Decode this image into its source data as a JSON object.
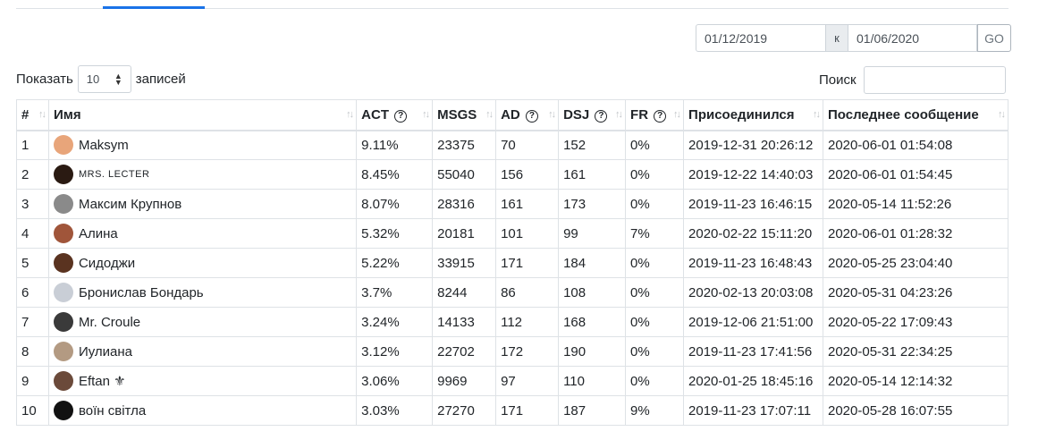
{
  "date_filter": {
    "start": "01/12/2019",
    "separator": "к",
    "end": "01/06/2020",
    "go_label": "GO"
  },
  "length": {
    "label_before": "Показать",
    "value": "10",
    "label_after": "записей"
  },
  "search": {
    "label": "Поиск",
    "value": ""
  },
  "columns": [
    {
      "label": "#",
      "help": false
    },
    {
      "label": "Имя",
      "help": false
    },
    {
      "label": "ACT",
      "help": true
    },
    {
      "label": "MSGS",
      "help": false
    },
    {
      "label": "AD",
      "help": true
    },
    {
      "label": "DSJ",
      "help": true
    },
    {
      "label": "FR",
      "help": true
    },
    {
      "label": "Присоединился",
      "help": false
    },
    {
      "label": "Последнее сообщение",
      "help": false
    }
  ],
  "rows": [
    {
      "n": "1",
      "name": "Maksym",
      "act": "9.11%",
      "msgs": "23375",
      "ad": "70",
      "dsj": "152",
      "fr": "0%",
      "joined": "2019-12-31 20:26:12",
      "last": "2020-06-01 01:54:08",
      "avatar_color": "#e8a57a"
    },
    {
      "n": "2",
      "name": "MRS. LECTER",
      "act": "8.45%",
      "msgs": "55040",
      "ad": "156",
      "dsj": "161",
      "fr": "0%",
      "joined": "2019-12-22 14:40:03",
      "last": "2020-06-01 01:54:45",
      "avatar_color": "#2a1a12"
    },
    {
      "n": "3",
      "name": "Максим Крупнов",
      "act": "8.07%",
      "msgs": "28316",
      "ad": "161",
      "dsj": "173",
      "fr": "0%",
      "joined": "2019-11-23 16:46:15",
      "last": "2020-05-14 11:52:26",
      "avatar_color": "#8a8a8a"
    },
    {
      "n": "4",
      "name": "Алина",
      "act": "5.32%",
      "msgs": "20181",
      "ad": "101",
      "dsj": "99",
      "fr": "7%",
      "joined": "2020-02-22 15:11:20",
      "last": "2020-06-01 01:28:32",
      "avatar_color": "#a0553a"
    },
    {
      "n": "5",
      "name": "Сидоджи",
      "act": "5.22%",
      "msgs": "33915",
      "ad": "171",
      "dsj": "184",
      "fr": "0%",
      "joined": "2019-11-23 16:48:43",
      "last": "2020-05-25 23:04:40",
      "avatar_color": "#5a3320"
    },
    {
      "n": "6",
      "name": "Бронислав Бондарь",
      "act": "3.7%",
      "msgs": "8244",
      "ad": "86",
      "dsj": "108",
      "fr": "0%",
      "joined": "2020-02-13 20:03:08",
      "last": "2020-05-31 04:23:26",
      "avatar_color": "#c9ced6"
    },
    {
      "n": "7",
      "name": "Mr. Croule",
      "act": "3.24%",
      "msgs": "14133",
      "ad": "112",
      "dsj": "168",
      "fr": "0%",
      "joined": "2019-12-06 21:51:00",
      "last": "2020-05-22 17:09:43",
      "avatar_color": "#3a3a3a"
    },
    {
      "n": "8",
      "name": "Иулиана",
      "act": "3.12%",
      "msgs": "22702",
      "ad": "172",
      "dsj": "190",
      "fr": "0%",
      "joined": "2019-11-23 17:41:56",
      "last": "2020-05-31 22:34:25",
      "avatar_color": "#b39a82"
    },
    {
      "n": "9",
      "name": "Eftan ⚜",
      "act": "3.06%",
      "msgs": "9969",
      "ad": "97",
      "dsj": "110",
      "fr": "0%",
      "joined": "2020-01-25 18:45:16",
      "last": "2020-05-14 12:14:32",
      "avatar_color": "#6b4a3a"
    },
    {
      "n": "10",
      "name": "воїн світла",
      "act": "3.03%",
      "msgs": "27270",
      "ad": "171",
      "dsj": "187",
      "fr": "9%",
      "joined": "2019-11-23 17:07:11",
      "last": "2020-05-28 16:07:55",
      "avatar_color": "#111111"
    }
  ]
}
